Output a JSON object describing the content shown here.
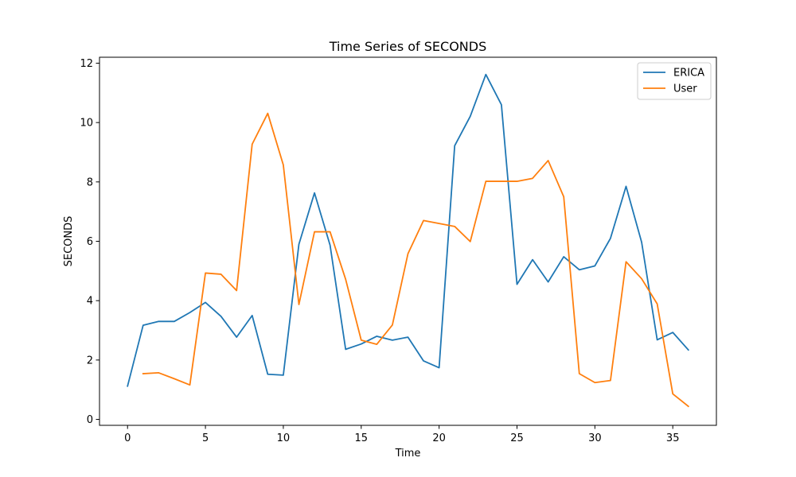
{
  "chart_data": {
    "type": "line",
    "title": "Time Series of SECONDS",
    "xlabel": "Time",
    "ylabel": "SECONDS",
    "xlim": [
      -1.8,
      37.8
    ],
    "ylim": [
      -0.2,
      12.2
    ],
    "xticks": [
      0,
      5,
      10,
      15,
      20,
      25,
      30,
      35
    ],
    "yticks": [
      0,
      2,
      4,
      6,
      8,
      10,
      12
    ],
    "grid": false,
    "legend_position": "upper right",
    "series": [
      {
        "name": "ERICA",
        "color": "#1f77b4",
        "x": [
          0,
          1,
          2,
          3,
          4,
          5,
          6,
          7,
          8,
          9,
          10,
          11,
          12,
          13,
          14,
          15,
          16,
          17,
          18,
          19,
          20,
          21,
          22,
          23,
          24,
          25,
          26,
          27,
          28,
          29,
          30,
          31,
          32,
          33,
          34,
          35,
          36
        ],
        "y": [
          1.12,
          3.17,
          3.3,
          3.3,
          3.6,
          3.94,
          3.47,
          2.77,
          3.5,
          1.52,
          1.49,
          5.9,
          7.63,
          5.87,
          2.36,
          2.54,
          2.8,
          2.67,
          2.77,
          1.97,
          1.74,
          9.22,
          10.21,
          11.62,
          10.6,
          4.55,
          5.38,
          4.63,
          5.48,
          5.04,
          5.17,
          6.1,
          7.85,
          5.97,
          2.68,
          2.93,
          2.34
        ]
      },
      {
        "name": "User",
        "color": "#ff7f0e",
        "x": [
          1,
          2,
          3,
          4,
          5,
          6,
          7,
          8,
          9,
          10,
          11,
          12,
          13,
          14,
          15,
          16,
          17,
          18,
          19,
          20,
          21,
          22,
          23,
          24,
          25,
          26,
          27,
          28,
          29,
          30,
          31,
          32,
          33,
          34,
          35,
          36
        ],
        "y": [
          1.54,
          1.57,
          1.37,
          1.16,
          4.93,
          4.89,
          4.34,
          9.27,
          10.31,
          8.57,
          3.87,
          6.32,
          6.32,
          4.72,
          2.67,
          2.53,
          3.18,
          5.58,
          6.7,
          6.6,
          6.5,
          5.99,
          8.02,
          8.02,
          8.02,
          8.12,
          8.72,
          7.5,
          1.54,
          1.24,
          1.31,
          5.31,
          4.74,
          3.89,
          0.86,
          0.44
        ]
      }
    ]
  }
}
